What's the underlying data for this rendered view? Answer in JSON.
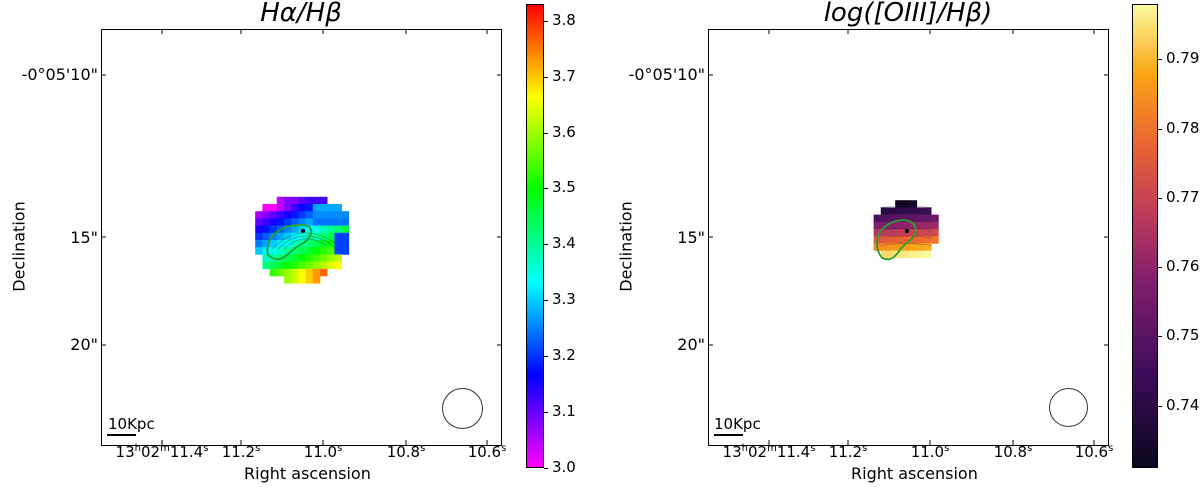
{
  "chart_data": [
    {
      "type": "heatmap",
      "title": "Hα/Hβ",
      "xlabel": "Right ascension",
      "ylabel": "Declination",
      "x_ticks": [
        "13h02m11.4s",
        "11.2s",
        "11.0s",
        "10.8s",
        "10.6s"
      ],
      "y_ticks": [
        "-0°05'10\"",
        "15\"",
        "20\""
      ],
      "colorbar": {
        "colormap": "gist_rainbow",
        "range": [
          3.0,
          3.83
        ],
        "ticks": [
          "3.0",
          "3.1",
          "3.2",
          "3.3",
          "3.4",
          "3.5",
          "3.6",
          "3.7",
          "3.8"
        ]
      },
      "scale_bar_label": "10Kpc",
      "beam": "circle bottom-right",
      "contour_color": "#2ca02c",
      "grid": false
    },
    {
      "type": "heatmap",
      "title": "log([OIII]/Hβ)",
      "xlabel": "Right ascension",
      "ylabel": "Declination",
      "x_ticks": [
        "13h02m11.4s",
        "11.2s",
        "11.0s",
        "10.8s",
        "10.6s"
      ],
      "y_ticks": [
        "-0°05'10\"",
        "15\"",
        "20\""
      ],
      "colorbar": {
        "colormap": "inferno",
        "range": [
          0.731,
          0.798
        ],
        "ticks": [
          "0.74",
          "0.75",
          "0.76",
          "0.77",
          "0.78",
          "0.79"
        ]
      },
      "scale_bar_label": "10Kpc",
      "beam": "circle bottom-right",
      "contour_color": "#2ca02c",
      "grid": false
    }
  ],
  "colors": {
    "contour": "#2ca02c",
    "inner_contour": "#111111"
  }
}
